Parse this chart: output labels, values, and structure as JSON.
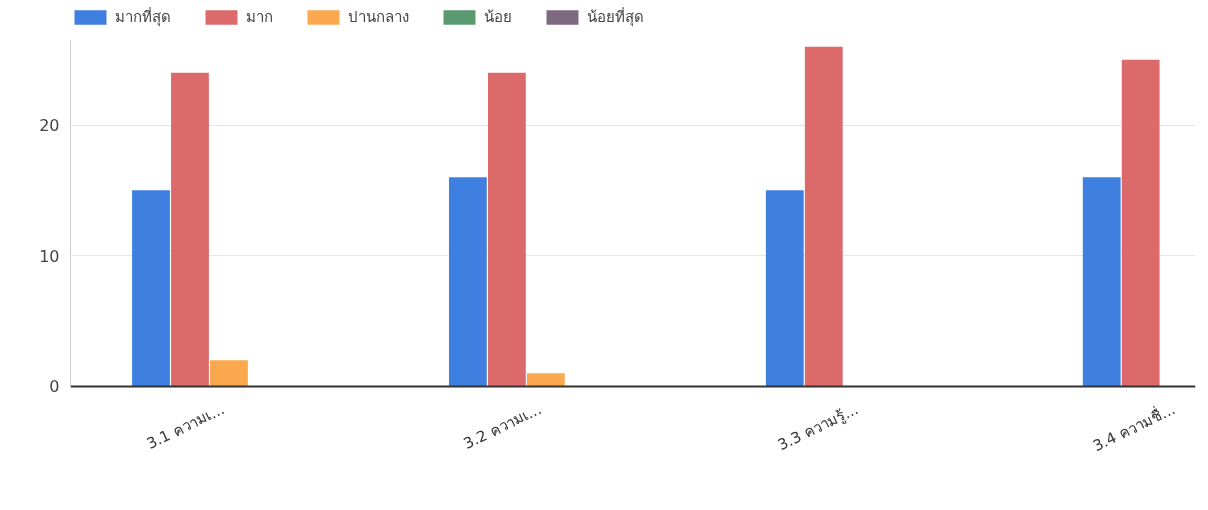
{
  "chart_data": {
    "type": "bar",
    "categories": [
      "3.1 ความเ...",
      "3.2 ความเ...",
      "3.3 ความรู้...",
      "3.4 ความชื่..."
    ],
    "series": [
      {
        "name": "มากที่สุด",
        "color": "#3f7fe0",
        "values": [
          15,
          16,
          15,
          16
        ]
      },
      {
        "name": "มาก",
        "color": "#dc6a6a",
        "values": [
          24,
          24,
          26,
          25
        ]
      },
      {
        "name": "ปานกลาง",
        "color": "#fba84f",
        "values": [
          2,
          1,
          0,
          0
        ]
      },
      {
        "name": "น้อย",
        "color": "#5a9a6e",
        "values": [
          0,
          0,
          0,
          0
        ]
      },
      {
        "name": "น้อยที่สุด",
        "color": "#7d6a80",
        "values": [
          0,
          0,
          0,
          0
        ]
      }
    ],
    "ylim": [
      0,
      26.5
    ],
    "yticks": [
      0,
      10,
      20
    ],
    "grid": "y",
    "legend": "top left"
  }
}
